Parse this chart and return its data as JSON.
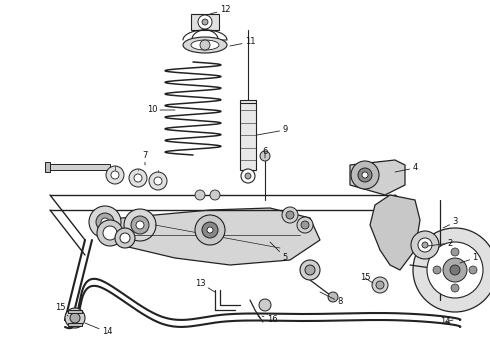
{
  "bg_color": "#ffffff",
  "line_color": "#222222",
  "label_color": "#111111",
  "fig_width": 4.9,
  "fig_height": 3.6,
  "dpi": 100,
  "lw": 0.9,
  "fs": 6.0
}
